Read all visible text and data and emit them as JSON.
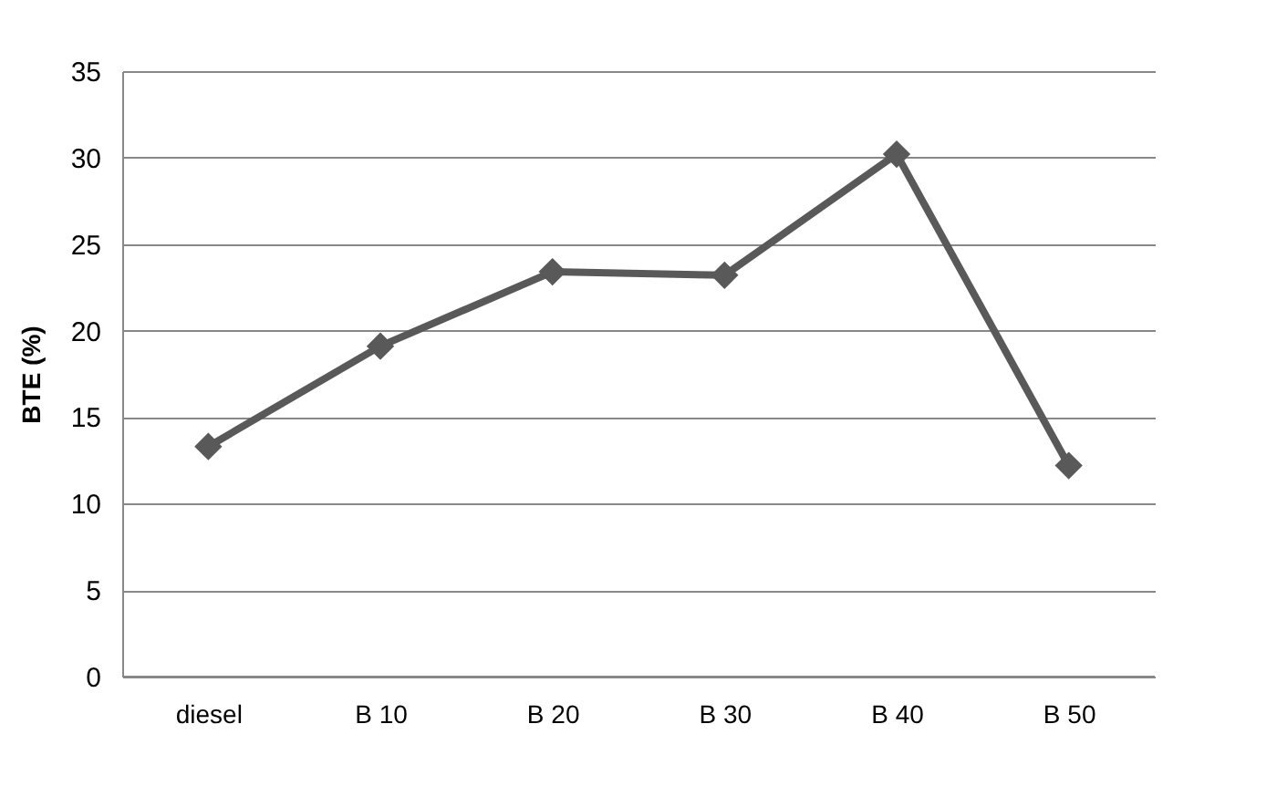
{
  "chart_data": {
    "type": "line",
    "ylabel": "BTE  (%)",
    "categories": [
      "diesel",
      "B 10",
      "B 20",
      "B 30",
      "B 40",
      "B 50"
    ],
    "series": [
      {
        "color": "#595959",
        "values": [
          13.3,
          19.1,
          23.4,
          23.2,
          30.2,
          12.2
        ]
      }
    ],
    "ylim": [
      0,
      35
    ],
    "yticks": [
      0,
      5,
      10,
      15,
      20,
      25,
      30,
      35
    ],
    "grid": "y",
    "marker": "diamond",
    "line_style": "solid"
  }
}
